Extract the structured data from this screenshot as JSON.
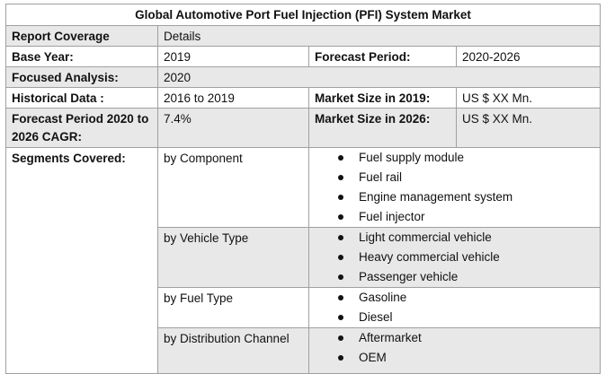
{
  "title": "Global Automotive Port Fuel Injection (PFI) System Market",
  "rows": [
    {
      "label": "Report Coverage",
      "value": "Details"
    },
    {
      "label": "Base Year:",
      "value": "2019",
      "label2": "Forecast Period:",
      "value2": "2020-2026"
    },
    {
      "label": "Focused Analysis:",
      "value": "2020"
    },
    {
      "label": "Historical Data :",
      "value": "2016 to 2019",
      "label2": "Market Size in 2019:",
      "value2": "US $ XX Mn."
    },
    {
      "label": "Forecast Period 2020 to 2026 CAGR:",
      "value": "7.4%",
      "label2": "Market Size in 2026:",
      "value2": "US $ XX Mn."
    }
  ],
  "segments": {
    "label": "Segments Covered:",
    "groups": [
      {
        "name": "by Component",
        "items": [
          "Fuel supply module",
          "Fuel rail",
          "Engine management system",
          "Fuel injector"
        ]
      },
      {
        "name": "by Vehicle Type",
        "items": [
          "Light commercial vehicle",
          "Heavy commercial vehicle",
          "Passenger vehicle"
        ]
      },
      {
        "name": "by Fuel Type",
        "items": [
          "Gasoline",
          "Diesel"
        ]
      },
      {
        "name": "by Distribution Channel",
        "items": [
          "Aftermarket",
          "OEM"
        ]
      }
    ]
  }
}
